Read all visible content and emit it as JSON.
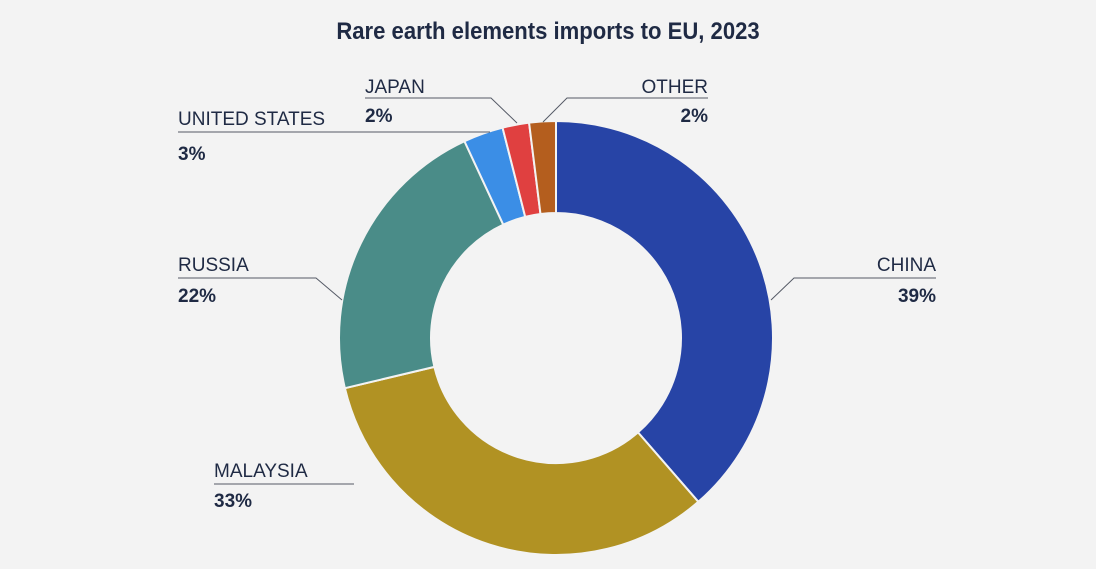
{
  "chart_data": {
    "type": "pie",
    "variant": "donut",
    "title": "Rare earth elements imports to EU, 2023",
    "categories": [
      "CHINA",
      "MALAYSIA",
      "RUSSIA",
      "UNITED STATES",
      "JAPAN",
      "OTHER"
    ],
    "values": [
      39,
      33,
      22,
      3,
      2,
      2
    ],
    "value_labels": [
      "39%",
      "33%",
      "22%",
      "3%",
      "2%",
      "2%"
    ],
    "colors": [
      "#2744a6",
      "#b19223",
      "#4a8c88",
      "#3b8ee6",
      "#e04040",
      "#b45e1e"
    ],
    "label_placement": "outside with leader lines"
  }
}
